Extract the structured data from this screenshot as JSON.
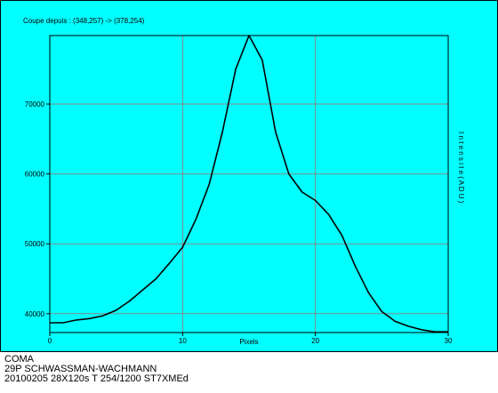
{
  "colors": {
    "panel": "#00ffff",
    "line": "#000000",
    "grid": "#888888"
  },
  "chart_data": {
    "type": "line",
    "title": "Coupe depuis : (348,257) -> (378,254)",
    "xlabel": "Pixels",
    "ylabel": "I n t e n s i t e   ( A D U )",
    "xlim": [
      0,
      30
    ],
    "ylim": [
      37300,
      79800
    ],
    "xticks": [
      0,
      10,
      20,
      30
    ],
    "yticks": [
      40000,
      50000,
      60000,
      70000
    ],
    "grid": true,
    "series": [
      {
        "x": [
          0,
          1,
          2,
          3,
          4,
          5,
          6,
          7,
          8,
          9,
          10,
          11,
          12,
          13,
          14,
          15,
          16,
          17,
          18,
          19,
          20,
          21,
          22,
          23,
          24,
          25,
          26,
          27,
          28,
          29,
          30
        ],
        "y": [
          38700,
          38700,
          39100,
          39300,
          39700,
          40500,
          41800,
          43400,
          45000,
          47200,
          49500,
          53500,
          58500,
          66000,
          75000,
          79800,
          76300,
          66000,
          60000,
          57400,
          56200,
          54200,
          51200,
          46800,
          43000,
          40300,
          38900,
          38200,
          37700,
          37400,
          37400
        ]
      }
    ]
  },
  "caption": {
    "line1": "COMA",
    "line2": "29P SCHWASSMAN-WACHMANN",
    "line3": "20100205 28X120s T 254/1200 ST7XMEd"
  }
}
